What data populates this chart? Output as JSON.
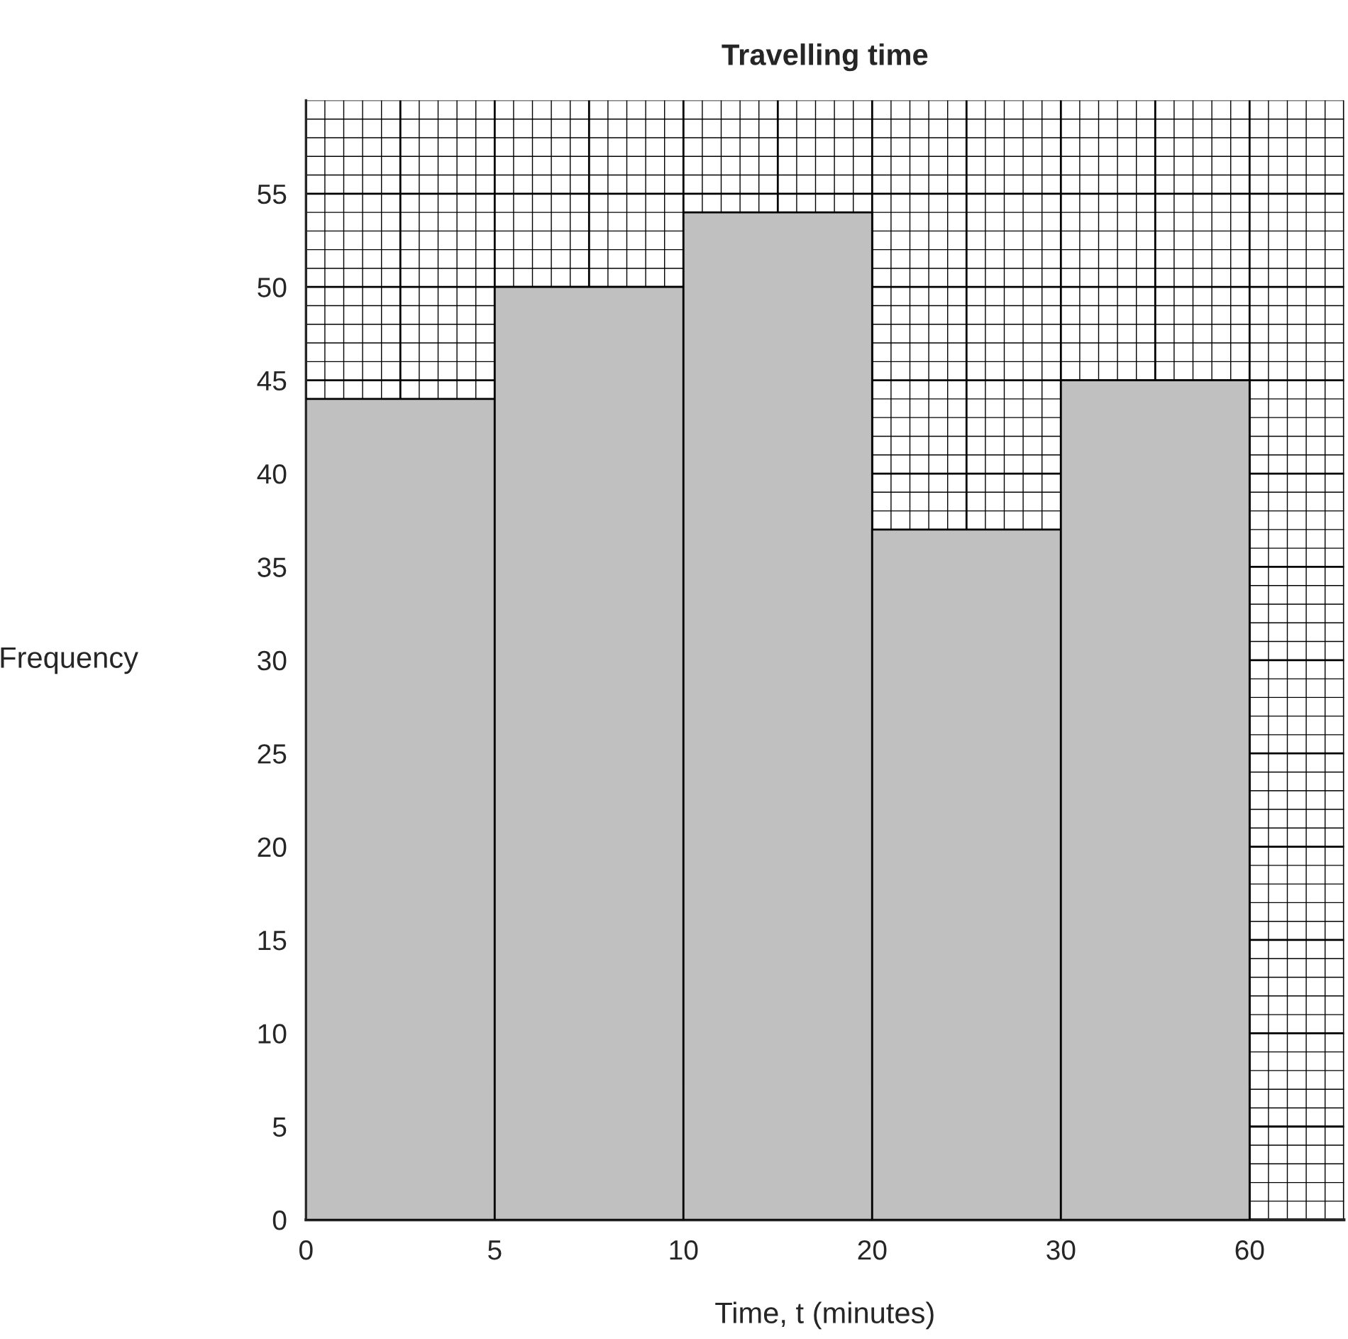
{
  "chart_data": {
    "type": "bar",
    "title": "Travelling time",
    "xlabel": "Time, t (minutes)",
    "ylabel": "Frequency",
    "categories": [
      null,
      null,
      null,
      null,
      null
    ],
    "values": [
      44,
      50,
      54,
      37,
      45
    ],
    "color": "#c0c0c0",
    "annotations": [
      "0",
      "5",
      "10",
      "20",
      "30",
      "60"
    ],
    "ylim": [
      0,
      60
    ],
    "yticks": [
      0,
      5,
      10,
      15,
      20,
      25,
      30,
      35,
      40,
      45,
      50,
      55
    ],
    "grid": true
  }
}
